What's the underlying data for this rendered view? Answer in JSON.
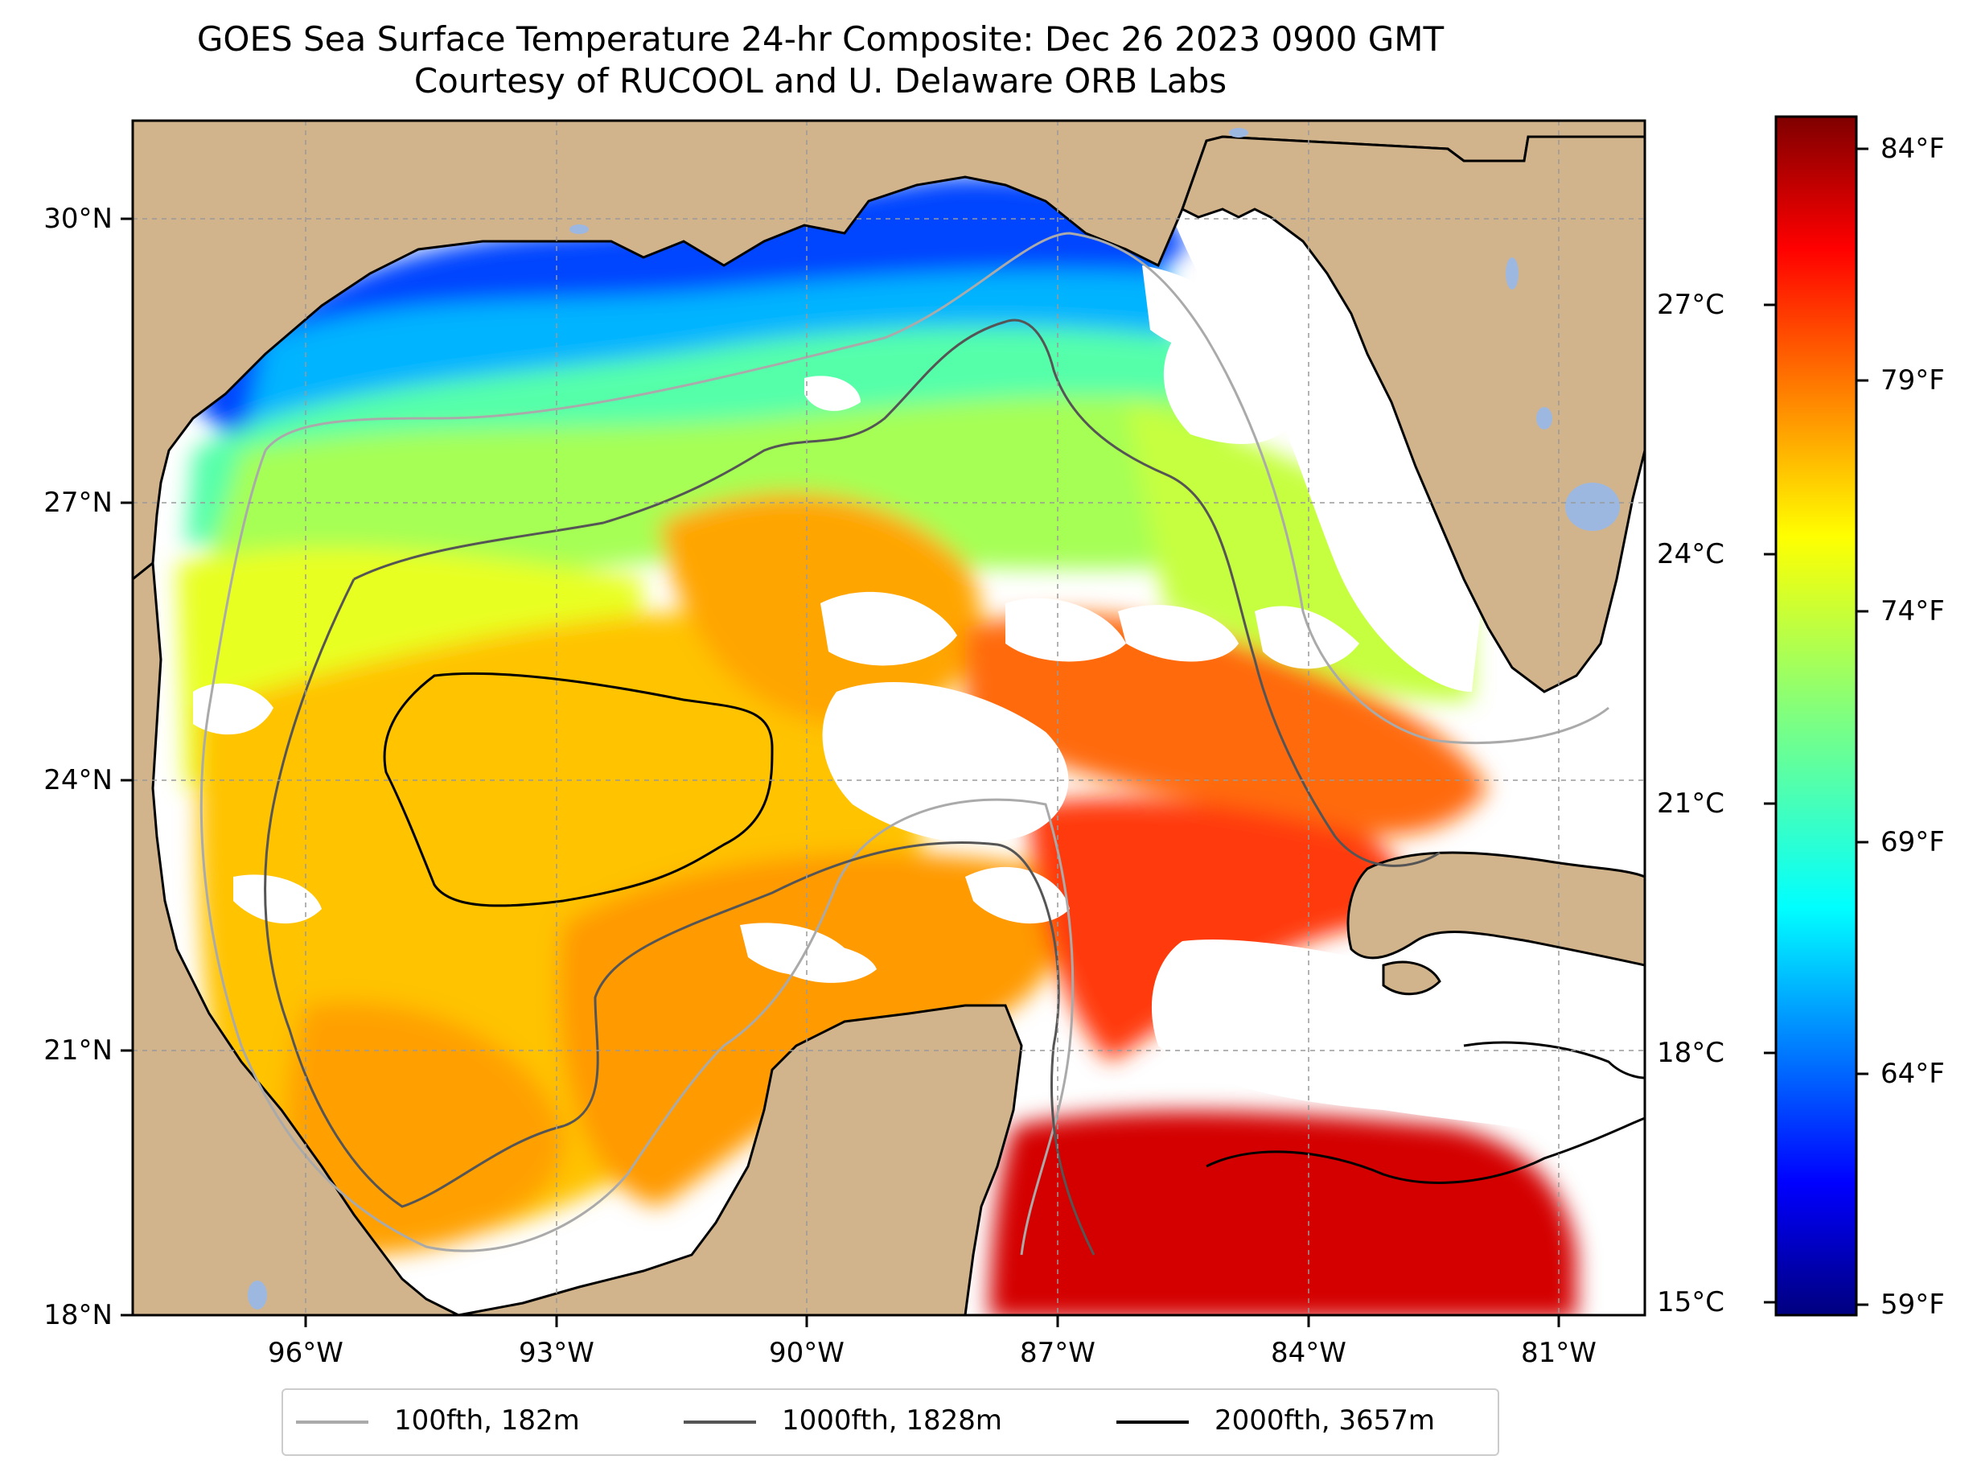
{
  "title": {
    "line1": "GOES Sea Surface Temperature 24-hr Composite: Dec 26 2023 0900 GMT",
    "line2": "Courtesy of RUCOOL and U. Delaware ORB Labs"
  },
  "map": {
    "lat_ticks": [
      "30°N",
      "27°N",
      "24°N",
      "21°N",
      "18°N"
    ],
    "lon_ticks": [
      "96°W",
      "93°W",
      "90°W",
      "87°W",
      "84°W",
      "81°W"
    ],
    "land_color": "#D2B48C",
    "lake_color": "#9DB8E0",
    "ocean_color": "#FFFFFF",
    "gridlines": true
  },
  "colorbar": {
    "colormap": "jet",
    "range_f": [
      59,
      85
    ],
    "fahrenheit_ticks": [
      "84°F",
      "79°F",
      "74°F",
      "69°F",
      "64°F",
      "59°F"
    ],
    "celsius_ticks": [
      "27°C",
      "24°C",
      "21°C",
      "18°C",
      "15°C"
    ]
  },
  "legend": {
    "items": [
      {
        "label": "100fth, 182m",
        "color": "#AAAAAA"
      },
      {
        "label": "1000fth, 1828m",
        "color": "#555555"
      },
      {
        "label": "2000fth, 3657m",
        "color": "#000000"
      }
    ]
  }
}
